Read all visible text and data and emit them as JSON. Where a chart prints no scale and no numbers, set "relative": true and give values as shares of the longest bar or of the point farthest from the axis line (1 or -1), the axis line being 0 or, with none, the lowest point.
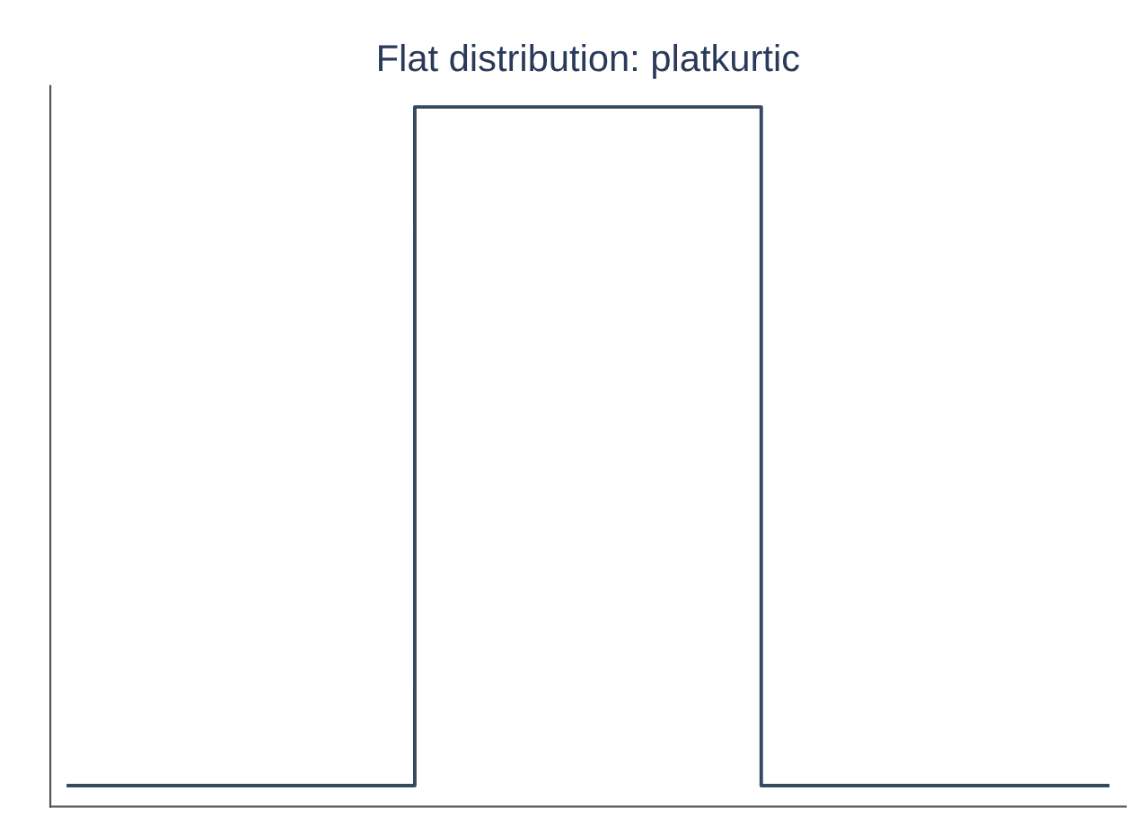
{
  "chart_data": {
    "type": "step",
    "title": "Flat distribution: platkurtic",
    "relative": true,
    "categories": [
      null,
      null,
      null,
      null
    ],
    "series": [
      {
        "color": "#34495e",
        "values": [
          0.03,
          1,
          0.03,
          0.03
        ]
      }
    ],
    "grid": false,
    "legend": false
  }
}
